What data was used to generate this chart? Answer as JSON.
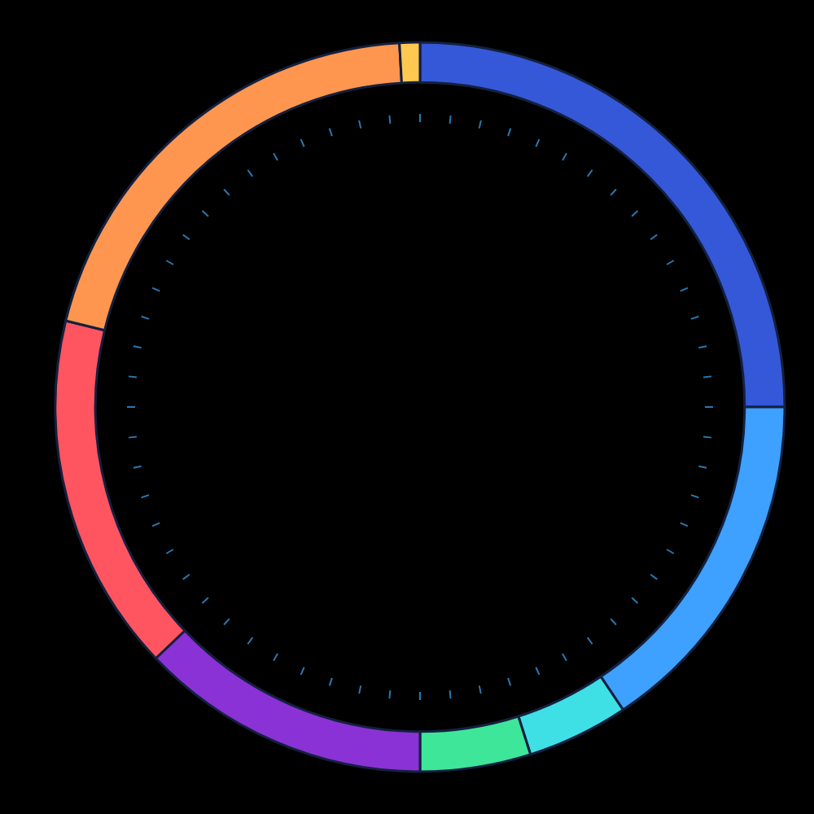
{
  "chart_data": {
    "type": "donut",
    "categories": [
      null,
      null,
      null,
      null,
      null,
      null,
      null,
      null
    ],
    "values": [
      25,
      15.6,
      4.5,
      4.9,
      12.9,
      15.9,
      20.3,
      0.9
    ],
    "colors": [
      "#3558d8",
      "#3ea0ff",
      "#3ee0e6",
      "#3ee69a",
      "#8a32d6",
      "#ff5560",
      "#ff9650",
      "#ffc850"
    ],
    "legend": false
  }
}
